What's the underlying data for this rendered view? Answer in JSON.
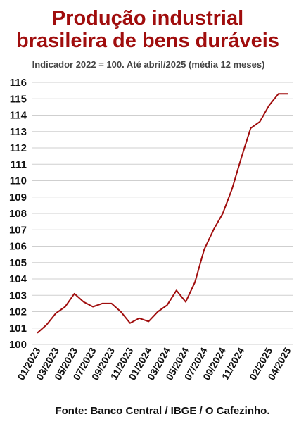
{
  "header": {
    "title_line1": "Produção industrial",
    "title_line2": "brasileira de bens duráveis",
    "subtitle": "Indicador 2022 = 100. Até abril/2025 (média 12 meses)"
  },
  "footer": {
    "source": "Fonte: Banco Central / IBGE / O Cafezinho."
  },
  "chart_data": {
    "type": "line",
    "title": "Produção industrial brasileira de bens duráveis",
    "subtitle": "Indicador 2022 = 100. Até abril/2025 (média 12 meses)",
    "xlabel": "",
    "ylabel": "",
    "ylim": [
      100,
      116
    ],
    "yticks": [
      100,
      101,
      102,
      103,
      104,
      105,
      106,
      107,
      108,
      109,
      110,
      111,
      112,
      113,
      114,
      115,
      116
    ],
    "xtick_labels": [
      "01/2023",
      "03/2023",
      "05/2023",
      "07/2023",
      "09/2023",
      "11/2023",
      "01/2024",
      "03/2024",
      "05/2024",
      "07/2024",
      "09/2024",
      "11/2024",
      "02/2025",
      "04/2025"
    ],
    "grid": true,
    "line_color": "#a00d0d",
    "series": [
      {
        "name": "",
        "x": [
          "01/2023",
          "02/2023",
          "03/2023",
          "04/2023",
          "05/2023",
          "06/2023",
          "07/2023",
          "08/2023",
          "09/2023",
          "10/2023",
          "11/2023",
          "12/2023",
          "01/2024",
          "02/2024",
          "03/2024",
          "04/2024",
          "05/2024",
          "06/2024",
          "07/2024",
          "08/2024",
          "09/2024",
          "10/2024",
          "11/2024",
          "12/2024",
          "01/2025",
          "02/2025",
          "03/2025",
          "04/2025"
        ],
        "values": [
          100.7,
          101.2,
          101.9,
          102.3,
          103.1,
          102.6,
          102.3,
          102.5,
          102.5,
          102.0,
          101.3,
          101.6,
          101.4,
          102.0,
          102.4,
          103.3,
          102.6,
          103.8,
          105.8,
          107.0,
          108.0,
          109.5,
          111.4,
          113.2,
          113.6,
          114.6,
          115.3,
          115.3
        ]
      }
    ]
  }
}
